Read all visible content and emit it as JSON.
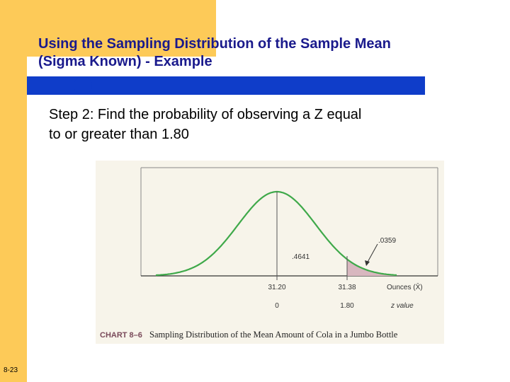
{
  "slide": {
    "title_line1": "Using the Sampling Distribution  of the Sample Mean",
    "title_line2": "(Sigma Known) - Example",
    "step_line1": "Step 2:  Find the probability of observing a Z equal",
    "step_line2": "to or greater than 1.80",
    "slide_number": "8-23"
  },
  "figure": {
    "area_label_left": ".4641",
    "area_label_right": ".0359",
    "x_ticks": [
      "31.20",
      "31.38"
    ],
    "x_axis_label": "Ounces (X̄)",
    "z_ticks": [
      "0",
      "1.80"
    ],
    "z_axis_label": "z value",
    "caption_label": "CHART 8–6",
    "caption_text": "Sampling Distribution of the Mean Amount of Cola in a Jumbo Bottle"
  },
  "colors": {
    "accent": "#fdca58",
    "title": "#1a1a8c",
    "bar": "#0f3dc9",
    "curve": "#3fa94a",
    "shaded_tail": "#d8b7bf"
  }
}
